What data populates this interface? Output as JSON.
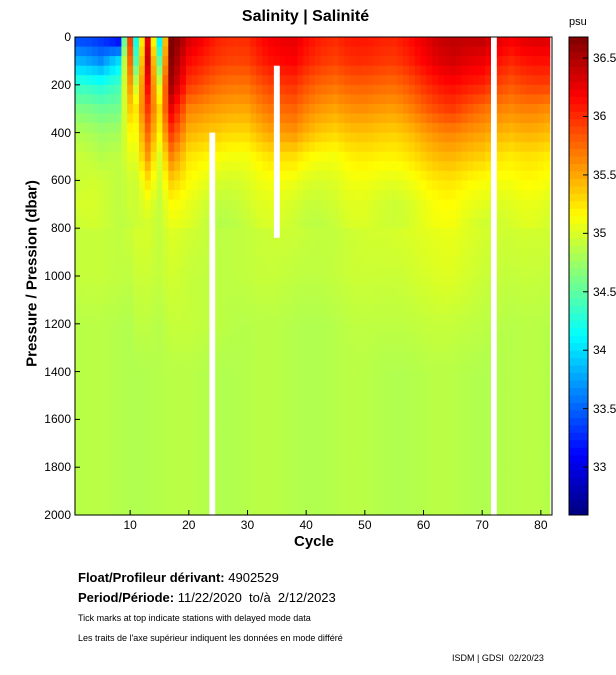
{
  "chart_data": {
    "type": "heatmap",
    "title": "Salinity | Salinité",
    "xlabel": "Cycle",
    "ylabel": "Pressure / Pression (dbar)",
    "colorbar_label": "psu",
    "xlim": [
      0.6,
      81.9
    ],
    "ylim": [
      2000,
      0
    ],
    "clim": [
      32.59,
      36.68
    ],
    "xticks": [
      "10",
      "20",
      "30",
      "40",
      "50",
      "60",
      "70",
      "80"
    ],
    "yticks": [
      "0",
      "200",
      "400",
      "600",
      "800",
      "1000",
      "1200",
      "1400",
      "1600",
      "1800",
      "2000"
    ],
    "cticks": [
      "33",
      "33.5",
      "34",
      "34.5",
      "35",
      "35.5",
      "36",
      "36.5"
    ],
    "contour_levels": [
      35,
      35.5,
      36
    ],
    "depths": [
      0,
      100,
      200,
      300,
      400,
      500,
      600,
      700,
      800,
      1000,
      1200,
      1400,
      2000
    ],
    "profiles": [
      {
        "cycle": 1,
        "s": [
          33.3,
          33.8,
          34.3,
          34.6,
          34.8,
          34.9,
          34.9,
          34.95,
          34.9,
          34.9,
          34.85,
          34.85,
          34.85
        ]
      },
      {
        "cycle": 5,
        "s": [
          33.2,
          33.6,
          34.2,
          34.5,
          34.7,
          34.8,
          34.9,
          34.9,
          34.9,
          34.9,
          34.85,
          34.85,
          34.85
        ]
      },
      {
        "cycle": 8,
        "s": [
          33.0,
          34.0,
          34.4,
          34.6,
          34.8,
          34.9,
          34.9,
          34.9,
          34.9,
          34.9,
          34.85,
          34.85,
          34.85
        ]
      },
      {
        "cycle": 10,
        "s": [
          36.0,
          35.8,
          35.6,
          35.4,
          35.2,
          35.1,
          35.0,
          35.0,
          34.95,
          34.9,
          34.85,
          34.85,
          34.85
        ]
      },
      {
        "cycle": 11,
        "s": [
          34.2,
          34.5,
          35.0,
          35.3,
          35.2,
          35.1,
          35.0,
          35.0,
          35.0,
          34.95,
          34.9,
          34.85,
          34.85
        ]
      },
      {
        "cycle": 13,
        "s": [
          36.3,
          36.4,
          36.2,
          36.0,
          35.8,
          35.6,
          35.3,
          35.1,
          35.0,
          34.95,
          34.9,
          34.85,
          34.85
        ]
      },
      {
        "cycle": 15,
        "s": [
          34.0,
          34.5,
          35.0,
          35.3,
          35.2,
          35.0,
          34.95,
          34.9,
          34.9,
          34.9,
          34.85,
          34.85,
          34.85
        ]
      },
      {
        "cycle": 17,
        "s": [
          36.7,
          36.6,
          36.5,
          36.2,
          35.9,
          35.6,
          35.3,
          35.1,
          35.0,
          34.95,
          34.9,
          34.85,
          34.85
        ]
      },
      {
        "cycle": 20,
        "s": [
          36.3,
          36.1,
          35.9,
          35.6,
          35.4,
          35.2,
          35.1,
          35.0,
          34.95,
          34.9,
          34.9,
          34.85,
          34.85
        ]
      },
      {
        "cycle": 25,
        "s": [
          36.1,
          36.0,
          35.8,
          35.6,
          35.4,
          35.2,
          35.05,
          34.95,
          34.9,
          34.9,
          34.9,
          34.85,
          34.85
        ]
      },
      {
        "cycle": 30,
        "s": [
          36.0,
          35.9,
          35.7,
          35.5,
          35.3,
          35.1,
          35.0,
          34.95,
          34.9,
          34.9,
          34.85,
          34.85,
          34.85
        ]
      },
      {
        "cycle": 38,
        "s": [
          36.3,
          36.2,
          36.0,
          35.8,
          35.6,
          35.3,
          35.1,
          35.0,
          34.95,
          34.9,
          34.85,
          34.85,
          34.85
        ]
      },
      {
        "cycle": 45,
        "s": [
          36.0,
          35.9,
          35.7,
          35.5,
          35.3,
          35.1,
          35.0,
          34.95,
          34.9,
          34.9,
          34.85,
          34.85,
          34.85
        ]
      },
      {
        "cycle": 55,
        "s": [
          36.1,
          36.0,
          35.8,
          35.6,
          35.4,
          35.25,
          35.1,
          35.0,
          35.0,
          34.95,
          34.9,
          34.85,
          34.85
        ]
      },
      {
        "cycle": 65,
        "s": [
          36.4,
          36.3,
          36.1,
          35.9,
          35.6,
          35.4,
          35.2,
          35.1,
          35.05,
          35.0,
          34.9,
          34.85,
          34.85
        ]
      },
      {
        "cycle": 70,
        "s": [
          36.5,
          36.3,
          36.1,
          35.8,
          35.6,
          35.4,
          35.2,
          35.1,
          35.0,
          34.95,
          34.9,
          34.85,
          34.85
        ]
      },
      {
        "cycle": 75,
        "s": [
          36.2,
          36.0,
          35.8,
          35.6,
          35.4,
          35.2,
          35.1,
          35.0,
          34.95,
          34.9,
          34.85,
          34.85,
          34.85
        ]
      },
      {
        "cycle": 81,
        "s": [
          36.3,
          36.1,
          35.9,
          35.6,
          35.4,
          35.2,
          35.1,
          35.0,
          34.95,
          34.9,
          34.85,
          34.85,
          34.85
        ]
      }
    ],
    "missing": [
      {
        "cycle": 24,
        "from": 430,
        "to": 2000
      },
      {
        "cycle": 35,
        "from": 120,
        "to": 810
      },
      {
        "cycle": 72,
        "from": 0,
        "to": 2000
      }
    ]
  },
  "info": {
    "float_label": "Float/Profileur dérivant:",
    "float_id": "4902529",
    "period_label": "Period/Période:",
    "period_value": "11/22/2020  to/à  2/12/2023",
    "note_en": "Tick marks at top indicate stations with delayed mode data",
    "note_fr": "Les traits de l'axe supérieur indiquent les données en mode différé",
    "credit": "ISDM | GDSI  02/20/23"
  }
}
